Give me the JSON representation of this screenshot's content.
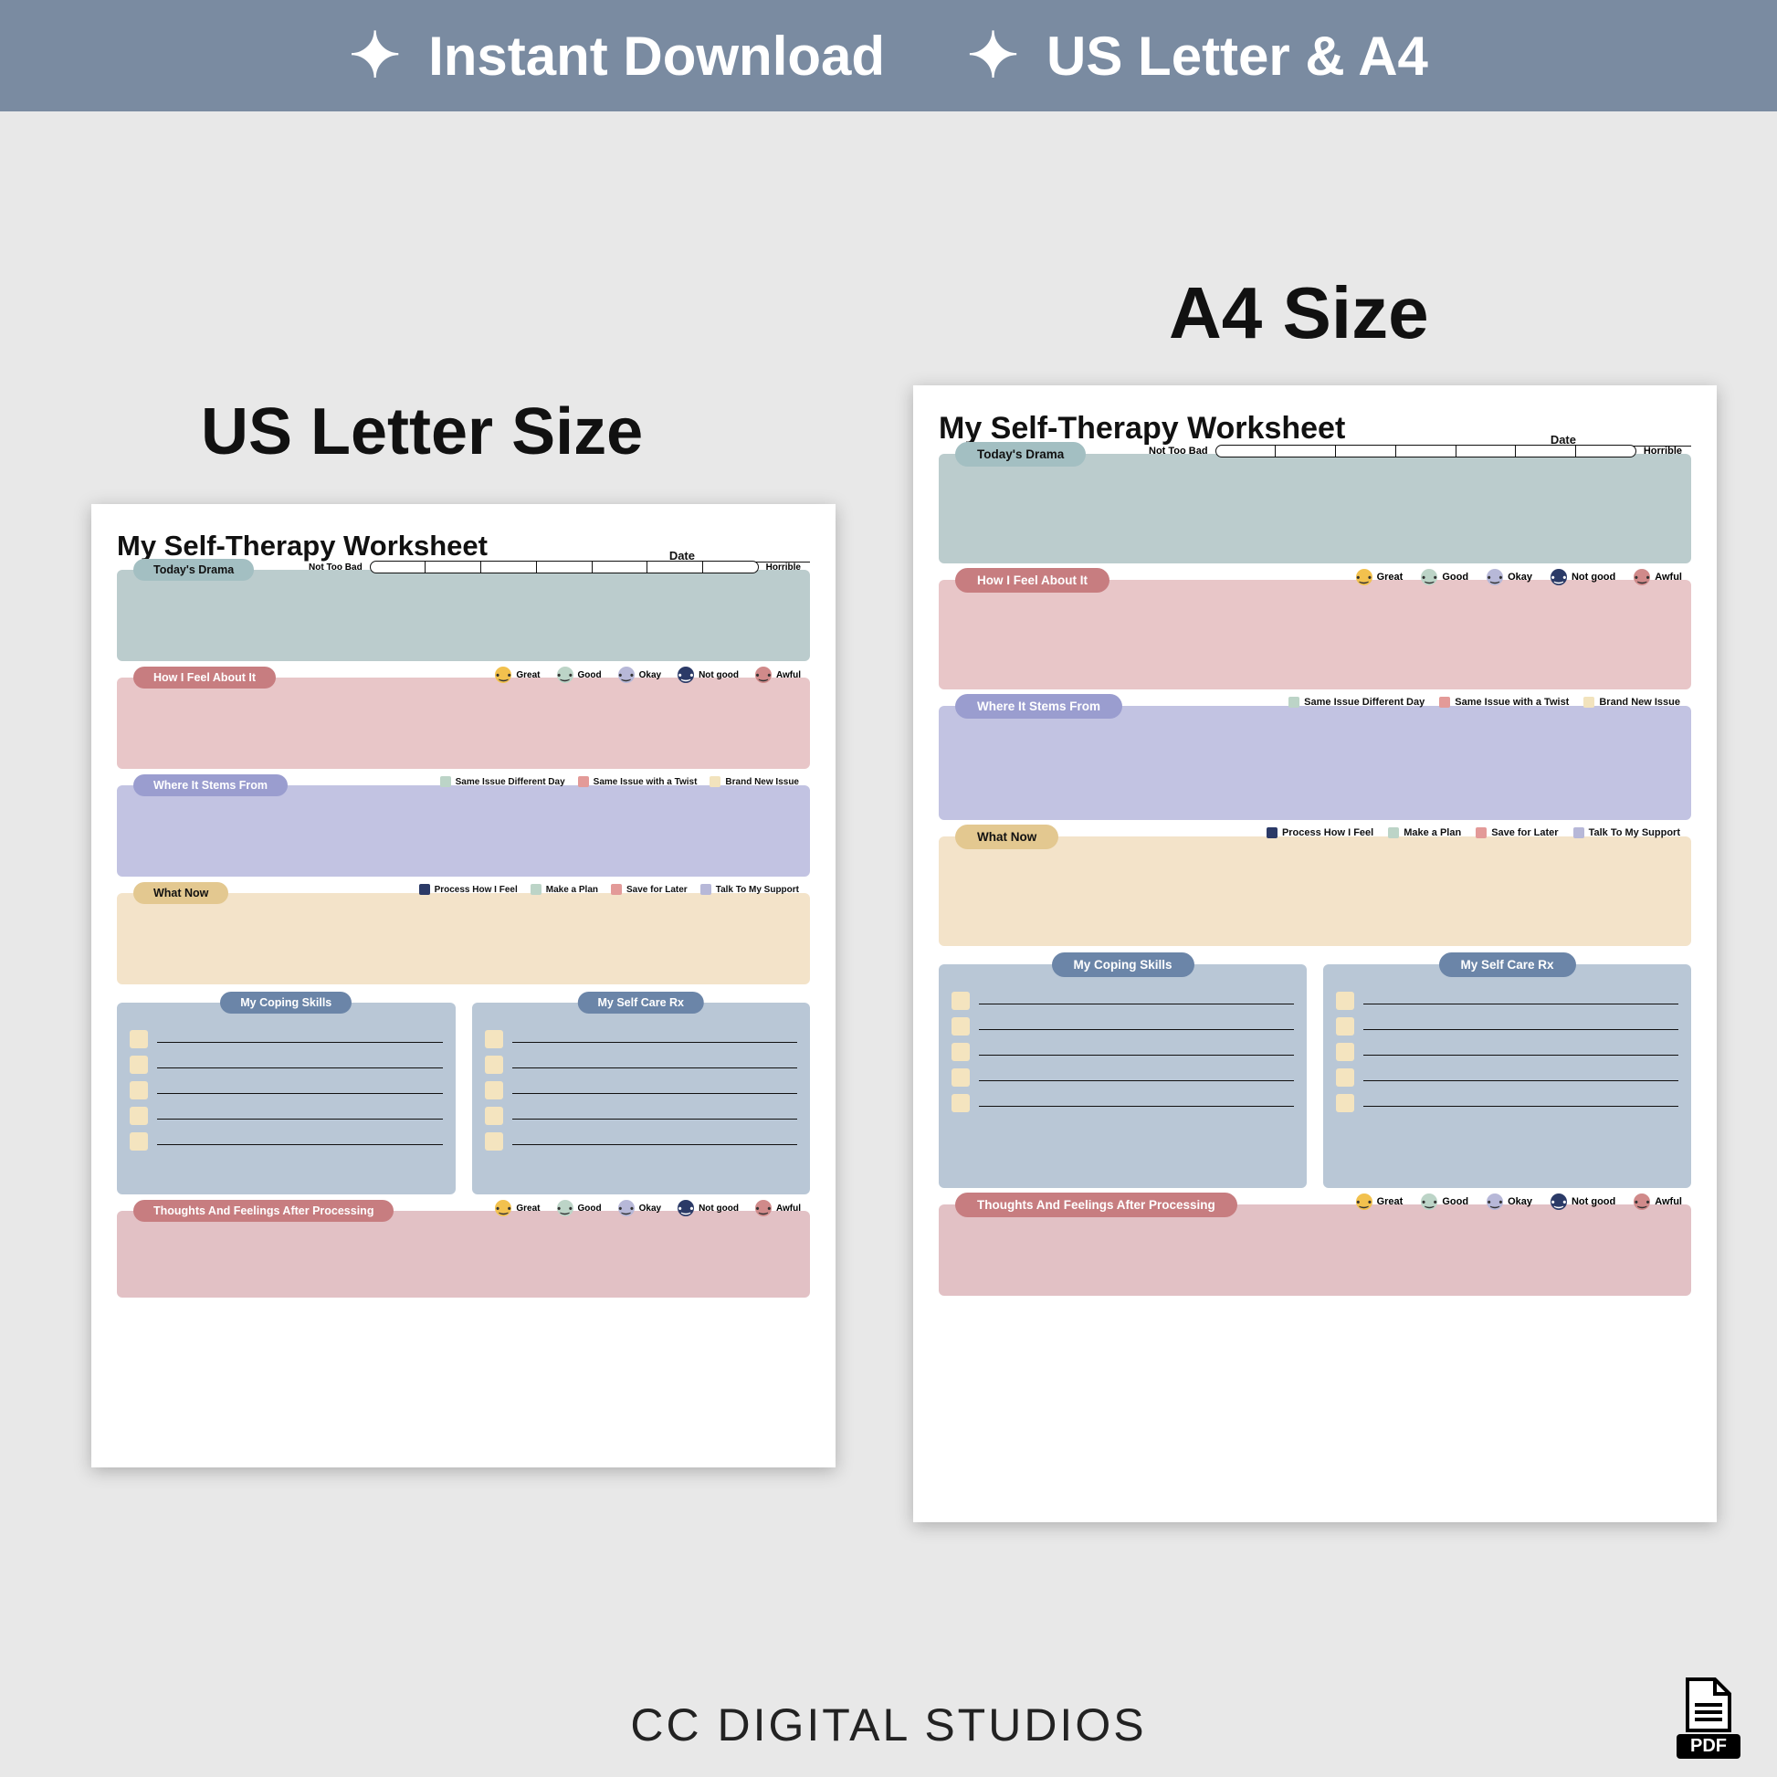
{
  "banner": {
    "items": [
      "Instant Download",
      "US Letter & A4"
    ],
    "bg": "#7a8ba1"
  },
  "labels": {
    "us": "US Letter Size",
    "a4": "A4 Size"
  },
  "brand": "CC DIGITAL STUDIOS",
  "pdf_label": "PDF",
  "worksheet": {
    "title": "My Self-Therapy Worksheet",
    "date_label": "Date",
    "colors": {
      "drama_body": "#bbcccd",
      "drama_pill": "#a3bfc2",
      "feel_body": "#e8c6c8",
      "feel_pill": "#c77d80",
      "stems_body": "#c2c3e2",
      "stems_pill": "#9a9dcf",
      "now_body": "#f3e3c9",
      "now_pill": "#e3c890",
      "skills_body": "#b9c7d6",
      "skills_pill": "#6b85a8",
      "rx_body": "#b9c7d6",
      "rx_pill": "#6b85a8",
      "after_body": "#e2c1c5",
      "after_pill": "#c77d80",
      "chk": "#f4e4bf",
      "skills_pill_text": "#ffffff"
    },
    "drama": {
      "label": "Today's Drama",
      "left": "Not Too Bad",
      "right": "Horrible",
      "segments": 7
    },
    "feel": {
      "label": "How I Feel About It",
      "faces": [
        {
          "t": "Great",
          "c": "#f2c14e"
        },
        {
          "t": "Good",
          "c": "#bcd4c7"
        },
        {
          "t": "Okay",
          "c": "#b7b8d8"
        },
        {
          "t": "Not good",
          "c": "#2b3a67"
        },
        {
          "t": "Awful",
          "c": "#d08a8a"
        }
      ]
    },
    "stems": {
      "label": "Where It Stems From",
      "legend": [
        {
          "t": "Same Issue Different Day",
          "c": "#bcd4c7"
        },
        {
          "t": "Same Issue with a Twist",
          "c": "#e39a98"
        },
        {
          "t": "Brand New Issue",
          "c": "#f2e3bd"
        }
      ]
    },
    "now": {
      "label": "What Now",
      "legend": [
        {
          "t": "Process How I Feel",
          "c": "#2b3a67"
        },
        {
          "t": "Make a Plan",
          "c": "#bcd4c7"
        },
        {
          "t": "Save for Later",
          "c": "#e39a98"
        },
        {
          "t": "Talk To My Support",
          "c": "#b7b8d8"
        }
      ]
    },
    "skills": {
      "label": "My Coping Skills",
      "lines": 5
    },
    "rx": {
      "label": "My Self Care Rx",
      "lines": 5
    },
    "after": {
      "label": "Thoughts And Feelings After Processing"
    }
  },
  "heights": {
    "us": {
      "drama": 100,
      "feel": 100,
      "stems": 100,
      "now": 100,
      "skills": 210,
      "after": 95
    },
    "a4": {
      "drama": 120,
      "feel": 120,
      "stems": 125,
      "now": 120,
      "skills": 245,
      "after": 100
    }
  }
}
